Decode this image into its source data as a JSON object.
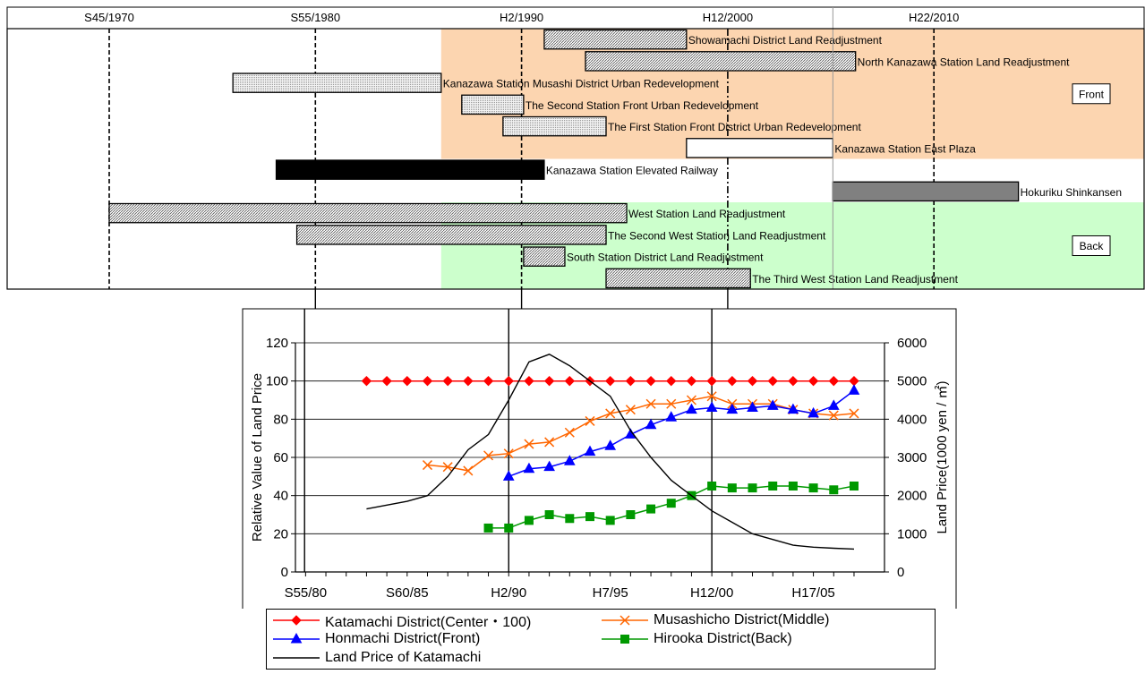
{
  "chart_data": [
    {
      "type": "timeline",
      "era_labels": [
        "S45/1970",
        "S55/1980",
        "H2/1990",
        "H12/2000",
        "H22/2010"
      ],
      "era_years": [
        1970,
        1980,
        1990,
        2000,
        2010
      ],
      "x_range": [
        1966,
        2095
      ],
      "region_labels": {
        "front": "Front",
        "back": "Back"
      },
      "projects": [
        {
          "label": "Showamachi District Land Readjustment",
          "start": 1991.1,
          "end": 1998,
          "style": "hatch",
          "region": "front"
        },
        {
          "label": "North Kanazawa Station Land Readjustment",
          "start": 1993.1,
          "end": 2006.2,
          "style": "hatch",
          "region": "front"
        },
        {
          "label": "Kanazawa Station Musashi District Urban Redevelopment",
          "start": 1976,
          "end": 1986.1,
          "style": "dots",
          "region": "front"
        },
        {
          "label": "The Second Station Front Urban Redevelopment",
          "start": 1987.1,
          "end": 1990.1,
          "style": "dots",
          "region": "front"
        },
        {
          "label": "The First Station Front District Urban Redevelopment",
          "start": 1989.1,
          "end": 1994.1,
          "style": "dots",
          "region": "front"
        },
        {
          "label": "Kanazawa Station East Plaza",
          "start": 1998,
          "end": 2005.1,
          "style": "white",
          "region": "front"
        },
        {
          "label": "Kanazawa Station Elevated Railway",
          "start": 1978.1,
          "end": 1991.1,
          "style": "black",
          "region": "none"
        },
        {
          "label": "Hokuriku Shinkansen",
          "start": 2005.1,
          "end": 2014.1,
          "style": "gray",
          "region": "none"
        },
        {
          "label": "West Station Land Readjustment",
          "start": 1970,
          "end": 1995.1,
          "style": "hatch",
          "region": "back"
        },
        {
          "label": "The Second West Station Land Readjustment",
          "start": 1979.1,
          "end": 1994.1,
          "style": "hatch",
          "region": "back"
        },
        {
          "label": "South Station District Land Readjustment",
          "start": 1990.1,
          "end": 1992.1,
          "style": "hatch",
          "region": "back"
        },
        {
          "label": "The Third West Station Land Readjustment",
          "start": 1994.1,
          "end": 2001.1,
          "style": "hatch",
          "region": "back"
        }
      ]
    },
    {
      "type": "line",
      "x": [
        1980,
        1981,
        1982,
        1983,
        1984,
        1985,
        1986,
        1987,
        1988,
        1989,
        1990,
        1991,
        1992,
        1993,
        1994,
        1995,
        1996,
        1997,
        1998,
        1999,
        2000,
        2001,
        2002,
        2003,
        2004,
        2005,
        2006,
        2007
      ],
      "x_ticks": [
        1980,
        1985,
        1990,
        1995,
        2000,
        2005
      ],
      "x_tick_labels": [
        "S55/80",
        "S60/85",
        "H2/90",
        "H7/95",
        "H12/00",
        "H17/05"
      ],
      "xlim": [
        1979.5,
        2008.5
      ],
      "ylabel": "Relative Value of Land Price",
      "ylim": [
        0,
        120
      ],
      "y_ticks": [
        0,
        20,
        40,
        60,
        80,
        100,
        120
      ],
      "y2label": "Land Price(1000 yen / ㎡)",
      "y2lim": [
        0,
        6000
      ],
      "y2_ticks": [
        0,
        1000,
        2000,
        3000,
        4000,
        5000,
        6000
      ],
      "series": [
        {
          "name": "Katamachi District(Center・100)",
          "axis": "left",
          "marker": "diamond",
          "color": "#ff0000",
          "x": [
            1983,
            1984,
            1985,
            1986,
            1987,
            1988,
            1989,
            1990,
            1991,
            1992,
            1993,
            1994,
            1995,
            1996,
            1997,
            1998,
            1999,
            2000,
            2001,
            2002,
            2003,
            2004,
            2005,
            2006,
            2007
          ],
          "values": [
            100,
            100,
            100,
            100,
            100,
            100,
            100,
            100,
            100,
            100,
            100,
            100,
            100,
            100,
            100,
            100,
            100,
            100,
            100,
            100,
            100,
            100,
            100,
            100,
            100
          ]
        },
        {
          "name": "Musashicho District(Middle)",
          "axis": "left",
          "marker": "x",
          "color": "#ff6600",
          "x": [
            1986,
            1987,
            1988,
            1989,
            1990,
            1991,
            1992,
            1993,
            1994,
            1995,
            1996,
            1997,
            1998,
            1999,
            2000,
            2001,
            2002,
            2003,
            2004,
            2005,
            2006,
            2007
          ],
          "values": [
            56,
            55,
            53,
            61,
            62,
            67,
            68,
            73,
            79,
            83,
            85,
            88,
            88,
            90,
            92,
            88,
            88,
            88,
            85,
            83,
            82,
            83
          ]
        },
        {
          "name": "Honmachi District(Front)",
          "axis": "left",
          "marker": "triangle",
          "color": "#0000ff",
          "x": [
            1990,
            1991,
            1992,
            1993,
            1994,
            1995,
            1996,
            1997,
            1998,
            1999,
            2000,
            2001,
            2002,
            2003,
            2004,
            2005,
            2006,
            2007
          ],
          "values": [
            50,
            54,
            55,
            58,
            63,
            66,
            72,
            77,
            81,
            85,
            86,
            85,
            86,
            87,
            85,
            83,
            87,
            95
          ]
        },
        {
          "name": "Hirooka District(Back)",
          "axis": "left",
          "marker": "square",
          "color": "#009900",
          "x": [
            1989,
            1990,
            1991,
            1992,
            1993,
            1994,
            1995,
            1996,
            1997,
            1998,
            1999,
            2000,
            2001,
            2002,
            2003,
            2004,
            2005,
            2006,
            2007
          ],
          "values": [
            23,
            23,
            27,
            30,
            28,
            29,
            27,
            30,
            33,
            36,
            40,
            45,
            44,
            44,
            45,
            45,
            44,
            43,
            45
          ]
        },
        {
          "name": "Land Price of Katamachi",
          "axis": "right",
          "marker": "none",
          "color": "#000000",
          "x": [
            1983,
            1984,
            1985,
            1986,
            1987,
            1988,
            1989,
            1990,
            1991,
            1992,
            1993,
            1994,
            1995,
            1996,
            1997,
            1998,
            1999,
            2000,
            2001,
            2002,
            2003,
            2004,
            2005,
            2006,
            2007
          ],
          "values": [
            1650,
            1750,
            1850,
            2000,
            2500,
            3200,
            3600,
            4500,
            5500,
            5700,
            5400,
            5000,
            4600,
            3700,
            3000,
            2400,
            2000,
            1600,
            1300,
            1000,
            850,
            700,
            650,
            620,
            600
          ]
        }
      ]
    }
  ]
}
